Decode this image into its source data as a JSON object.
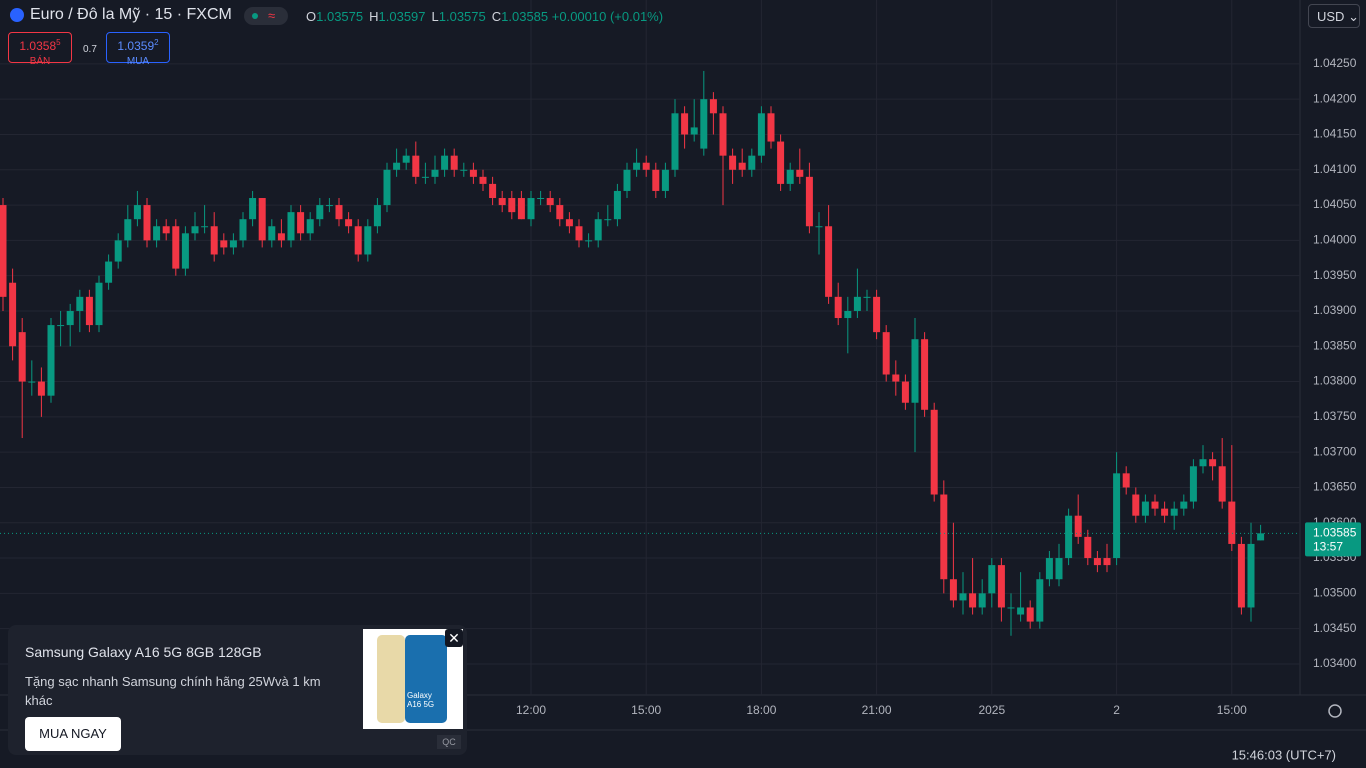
{
  "header": {
    "symbol": "Euro / Đô la Mỹ · 15 · FXCM",
    "o_label": "O",
    "h_label": "H",
    "l_label": "L",
    "c_label": "C",
    "change": "+0.00010 (+0.01%)",
    "currency": "USD"
  },
  "trade": {
    "bid_price": "1.0358",
    "bid_pip": "5",
    "bid_label": "BÁN",
    "spread": "0.7",
    "ask_price": "1.0359",
    "ask_pip": "2",
    "ask_label": "MUA"
  },
  "chart_data": {
    "type": "candlestick",
    "up_color": "#089981",
    "down_color": "#f23645",
    "grid": true,
    "categories": [
      null,
      null,
      null,
      null,
      null,
      null,
      null,
      null,
      null,
      null,
      null,
      null,
      null,
      null,
      null,
      null,
      null,
      null,
      null,
      null,
      null,
      null,
      null,
      null,
      null,
      null,
      null,
      null,
      null,
      null,
      null,
      null,
      null,
      null,
      null,
      null,
      null,
      null,
      null,
      null,
      null,
      null,
      null,
      null,
      null,
      null,
      null,
      null,
      null,
      null,
      null,
      null,
      null,
      null,
      null,
      "12:00",
      null,
      null,
      null,
      null,
      null,
      null,
      null,
      null,
      null,
      null,
      null,
      "15:00",
      null,
      null,
      null,
      null,
      null,
      null,
      null,
      null,
      null,
      null,
      null,
      "18:00",
      null,
      null,
      null,
      null,
      null,
      null,
      null,
      null,
      null,
      null,
      null,
      "21:00",
      null,
      null,
      null,
      null,
      null,
      null,
      null,
      null,
      null,
      null,
      null,
      "2025",
      null,
      null,
      null,
      null,
      null,
      null,
      null,
      null,
      null,
      null,
      null,
      null,
      "2",
      null,
      null,
      null,
      null,
      null,
      null,
      null,
      null,
      null,
      null,
      null,
      "15:00",
      null,
      null,
      null
    ],
    "open": [
      1.0405,
      1.0394,
      1.0387,
      1.038,
      1.038,
      1.0378,
      1.0388,
      1.0388,
      1.039,
      1.0392,
      1.0388,
      1.0394,
      1.0397,
      1.04,
      1.0403,
      1.0405,
      1.04,
      1.0402,
      1.0402,
      1.0396,
      1.0401,
      1.0402,
      1.0402,
      1.04,
      1.0399,
      1.04,
      1.0403,
      1.0406,
      1.04,
      1.0401,
      1.04,
      1.0404,
      1.0401,
      1.0403,
      1.0405,
      1.0405,
      1.0403,
      1.0402,
      1.0398,
      1.0402,
      1.0405,
      1.041,
      1.0411,
      1.0412,
      1.0409,
      1.0409,
      1.041,
      1.0412,
      1.041,
      1.041,
      1.0409,
      1.0408,
      1.0406,
      1.0406,
      1.0406,
      1.0403,
      1.0406,
      1.0406,
      1.0405,
      1.0403,
      1.0402,
      1.04,
      1.04,
      1.0403,
      1.0403,
      1.0407,
      1.041,
      1.0411,
      1.041,
      1.0407,
      1.041,
      1.0418,
      1.0415,
      1.0413,
      1.042,
      1.0418,
      1.0412,
      1.0411,
      1.041,
      1.0412,
      1.0418,
      1.0414,
      1.0408,
      1.041,
      1.0409,
      1.0402,
      1.0402,
      1.0392,
      1.0389,
      1.039,
      1.0392,
      1.0392,
      1.0387,
      1.0381,
      1.038,
      1.0377,
      1.0386,
      1.0376,
      1.0364,
      1.0352,
      1.0349,
      1.035,
      1.0348,
      1.035,
      1.0354,
      1.0348,
      1.0347,
      1.0348,
      1.0346,
      1.0352,
      1.0352,
      1.0355,
      1.0361,
      1.0358,
      1.0355,
      1.0355,
      1.0355,
      1.0367,
      1.0364,
      1.0361,
      1.0363,
      1.0362,
      1.0361,
      1.0362,
      1.0363,
      1.0368,
      1.0369,
      1.0368,
      1.0363,
      1.0357,
      1.0348,
      1.03575
    ],
    "high": [
      1.0406,
      1.0396,
      1.0389,
      1.0383,
      1.0382,
      1.0389,
      1.039,
      1.0391,
      1.0393,
      1.0393,
      1.0395,
      1.0398,
      1.0401,
      1.0405,
      1.0407,
      1.0406,
      1.0403,
      1.0403,
      1.0403,
      1.0402,
      1.0404,
      1.0405,
      1.0404,
      1.0401,
      1.0401,
      1.0404,
      1.0407,
      1.0406,
      1.0403,
      1.0403,
      1.0405,
      1.0405,
      1.0404,
      1.0406,
      1.0406,
      1.0406,
      1.0404,
      1.0403,
      1.0403,
      1.0406,
      1.0411,
      1.0413,
      1.0413,
      1.0414,
      1.0411,
      1.0412,
      1.0413,
      1.0413,
      1.0411,
      1.0411,
      1.041,
      1.0409,
      1.0407,
      1.0407,
      1.0407,
      1.0407,
      1.0407,
      1.0407,
      1.0406,
      1.0404,
      1.0403,
      1.0401,
      1.0404,
      1.0405,
      1.0408,
      1.0411,
      1.0413,
      1.0412,
      1.0411,
      1.0411,
      1.042,
      1.0419,
      1.042,
      1.0424,
      1.0421,
      1.0419,
      1.0413,
      1.0413,
      1.0413,
      1.0419,
      1.0419,
      1.0415,
      1.0411,
      1.0413,
      1.0411,
      1.0404,
      1.0405,
      1.0394,
      1.0392,
      1.0396,
      1.0393,
      1.0393,
      1.0388,
      1.0383,
      1.0381,
      1.0389,
      1.0387,
      1.0377,
      1.0366,
      1.036,
      1.0353,
      1.0355,
      1.0352,
      1.0355,
      1.0355,
      1.035,
      1.0353,
      1.0349,
      1.0353,
      1.0356,
      1.0357,
      1.0362,
      1.0364,
      1.0359,
      1.0356,
      1.0357,
      1.037,
      1.0368,
      1.0365,
      1.0364,
      1.0364,
      1.0363,
      1.0363,
      1.0364,
      1.0369,
      1.0371,
      1.037,
      1.0372,
      1.0371,
      1.0358,
      1.036,
      1.03597
    ],
    "low": [
      1.039,
      1.0383,
      1.0372,
      1.0378,
      1.0375,
      1.0377,
      1.0385,
      1.0385,
      1.0387,
      1.0387,
      1.0387,
      1.0393,
      1.0396,
      1.0399,
      1.0402,
      1.0399,
      1.0399,
      1.04,
      1.0395,
      1.0395,
      1.04,
      1.0401,
      1.0397,
      1.0398,
      1.0398,
      1.0399,
      1.0402,
      1.0399,
      1.0399,
      1.0399,
      1.0399,
      1.04,
      1.04,
      1.0402,
      1.0404,
      1.0402,
      1.0401,
      1.0397,
      1.0397,
      1.0401,
      1.0404,
      1.0409,
      1.041,
      1.0408,
      1.0408,
      1.0408,
      1.0409,
      1.0409,
      1.0409,
      1.0408,
      1.0407,
      1.0405,
      1.0404,
      1.0403,
      1.0403,
      1.0402,
      1.0405,
      1.0404,
      1.0402,
      1.0401,
      1.0399,
      1.0399,
      1.0399,
      1.0402,
      1.0402,
      1.0406,
      1.0409,
      1.0409,
      1.0406,
      1.0406,
      1.0409,
      1.0413,
      1.0414,
      1.0412,
      1.0415,
      1.0405,
      1.0408,
      1.0409,
      1.0409,
      1.0411,
      1.0413,
      1.0407,
      1.0407,
      1.0408,
      1.0401,
      1.0398,
      1.0391,
      1.0388,
      1.0384,
      1.0389,
      1.039,
      1.0386,
      1.038,
      1.0378,
      1.0376,
      1.037,
      1.0375,
      1.0363,
      1.035,
      1.0348,
      1.0347,
      1.0347,
      1.0347,
      1.0348,
      1.0346,
      1.0344,
      1.0346,
      1.0345,
      1.0345,
      1.0351,
      1.0351,
      1.0354,
      1.0357,
      1.0354,
      1.0353,
      1.0353,
      1.0354,
      1.0364,
      1.036,
      1.036,
      1.0361,
      1.036,
      1.0359,
      1.0361,
      1.0362,
      1.0367,
      1.0366,
      1.0362,
      1.0356,
      1.0347,
      1.0346,
      1.03575
    ],
    "close": [
      1.0392,
      1.0385,
      1.038,
      1.038,
      1.0378,
      1.0388,
      1.0388,
      1.039,
      1.0392,
      1.0388,
      1.0394,
      1.0397,
      1.04,
      1.0403,
      1.0405,
      1.04,
      1.0402,
      1.0401,
      1.0396,
      1.0401,
      1.0402,
      1.0402,
      1.0398,
      1.0399,
      1.04,
      1.0403,
      1.0406,
      1.04,
      1.0402,
      1.04,
      1.0404,
      1.0401,
      1.0403,
      1.0405,
      1.0405,
      1.0403,
      1.0402,
      1.0398,
      1.0402,
      1.0405,
      1.041,
      1.0411,
      1.0412,
      1.0409,
      1.0409,
      1.041,
      1.0412,
      1.041,
      1.041,
      1.0409,
      1.0408,
      1.0406,
      1.0405,
      1.0404,
      1.0403,
      1.0406,
      1.0406,
      1.0405,
      1.0403,
      1.0402,
      1.04,
      1.04,
      1.0403,
      1.0403,
      1.0407,
      1.041,
      1.0411,
      1.041,
      1.0407,
      1.041,
      1.0418,
      1.0415,
      1.0416,
      1.042,
      1.0418,
      1.0412,
      1.041,
      1.041,
      1.0412,
      1.0418,
      1.0414,
      1.0408,
      1.041,
      1.0409,
      1.0402,
      1.0402,
      1.0392,
      1.0389,
      1.039,
      1.0392,
      1.0392,
      1.0387,
      1.0381,
      1.038,
      1.0377,
      1.0386,
      1.0376,
      1.0364,
      1.0352,
      1.0349,
      1.035,
      1.0348,
      1.035,
      1.0354,
      1.0348,
      1.0348,
      1.0348,
      1.0346,
      1.0352,
      1.0355,
      1.0355,
      1.0361,
      1.0358,
      1.0355,
      1.0354,
      1.0354,
      1.0367,
      1.0365,
      1.0361,
      1.0363,
      1.0362,
      1.0361,
      1.0362,
      1.0363,
      1.0368,
      1.0369,
      1.0368,
      1.0363,
      1.0357,
      1.0348,
      1.0357,
      1.03585
    ],
    "ylim": [
      1.03356,
      1.04298
    ],
    "yticks": [
      {
        "value": 1.034,
        "label": "1.03400"
      },
      {
        "value": 1.0345,
        "label": "1.03450"
      },
      {
        "value": 1.035,
        "label": "1.03500"
      },
      {
        "value": 1.0355,
        "label": "1.03550"
      },
      {
        "value": 1.036,
        "label": "1.03600"
      },
      {
        "value": 1.0365,
        "label": "1.03650"
      },
      {
        "value": 1.037,
        "label": "1.03700"
      },
      {
        "value": 1.0375,
        "label": "1.03750"
      },
      {
        "value": 1.038,
        "label": "1.03800"
      },
      {
        "value": 1.0385,
        "label": "1.03850"
      },
      {
        "value": 1.039,
        "label": "1.03900"
      },
      {
        "value": 1.0395,
        "label": "1.03950"
      },
      {
        "value": 1.04,
        "label": "1.04000"
      },
      {
        "value": 1.0405,
        "label": "1.04050"
      },
      {
        "value": 1.041,
        "label": "1.04100"
      },
      {
        "value": 1.0415,
        "label": "1.04150"
      },
      {
        "value": 1.042,
        "label": "1.04200"
      },
      {
        "value": 1.0425,
        "label": "1.04250"
      }
    ],
    "countdown": "13:57"
  },
  "ad": {
    "title": "Samsung Galaxy A16 5G 8GB 128GB",
    "text": "Tặng sạc nhanh Samsung chính hãng 25Wvà 1 km khác",
    "button": "MUA NGAY",
    "image_text": "Galaxy A16 5G",
    "tag": "QC"
  },
  "footer": {
    "time": "15:46:03 (UTC+7)"
  }
}
